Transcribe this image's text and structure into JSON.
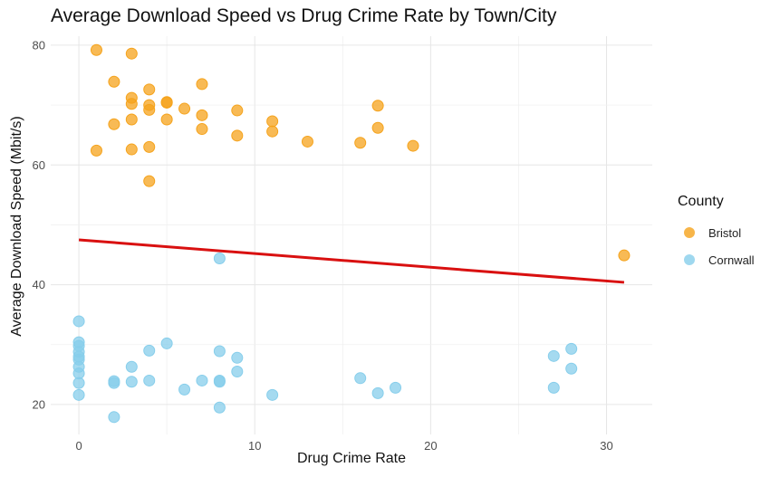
{
  "chart_data": {
    "type": "scatter",
    "title": "Average Download Speed vs Drug Crime Rate by Town/City",
    "xlabel": "Drug Crime Rate",
    "ylabel": "Average Download Speed (Mbit/s)",
    "xlim": [
      -1.6,
      32.6
    ],
    "ylim": [
      15,
      81.5
    ],
    "xticks": [
      0,
      10,
      20,
      30
    ],
    "yticks": [
      20,
      40,
      60,
      80
    ],
    "grid": true,
    "legend": {
      "title": "County",
      "position": "right"
    },
    "series": [
      {
        "name": "Bristol",
        "color": "#F5A31C",
        "x": [
          1,
          3,
          2,
          7,
          3,
          4,
          3,
          5,
          5,
          4,
          4,
          2,
          3,
          5,
          7,
          6,
          9,
          17,
          7,
          11,
          9,
          11,
          16,
          13,
          17,
          19,
          1,
          3,
          4,
          4,
          31
        ],
        "y": [
          79.2,
          78.6,
          73.9,
          73.5,
          71.2,
          72.6,
          70.2,
          70.4,
          70.5,
          70.0,
          69.2,
          66.8,
          67.6,
          67.6,
          68.3,
          69.4,
          69.1,
          69.9,
          66.0,
          67.3,
          64.9,
          65.6,
          63.7,
          63.9,
          66.2,
          63.2,
          62.4,
          62.6,
          63.0,
          57.3,
          44.9
        ]
      },
      {
        "name": "Cornwall",
        "color": "#87CEEB",
        "x": [
          0,
          0,
          0,
          0,
          0,
          0,
          0,
          0,
          0,
          0,
          2,
          2,
          2,
          3,
          3,
          4,
          4,
          5,
          6,
          7,
          8,
          8,
          8,
          8,
          8,
          9,
          9,
          11,
          16,
          17,
          18,
          27,
          27,
          28,
          28
        ],
        "y": [
          33.9,
          30.4,
          29.8,
          28.8,
          28.0,
          27.5,
          26.3,
          25.2,
          23.6,
          21.6,
          23.9,
          23.6,
          17.9,
          26.3,
          23.8,
          29.0,
          24.0,
          30.2,
          22.5,
          24.0,
          44.4,
          28.9,
          24.0,
          23.8,
          19.5,
          27.8,
          25.5,
          21.6,
          24.4,
          21.9,
          22.8,
          28.1,
          22.8,
          29.3,
          26.0
        ]
      }
    ],
    "trend_line": {
      "color": "#D91010",
      "x": [
        0,
        31
      ],
      "y": [
        47.5,
        40.4
      ]
    }
  }
}
